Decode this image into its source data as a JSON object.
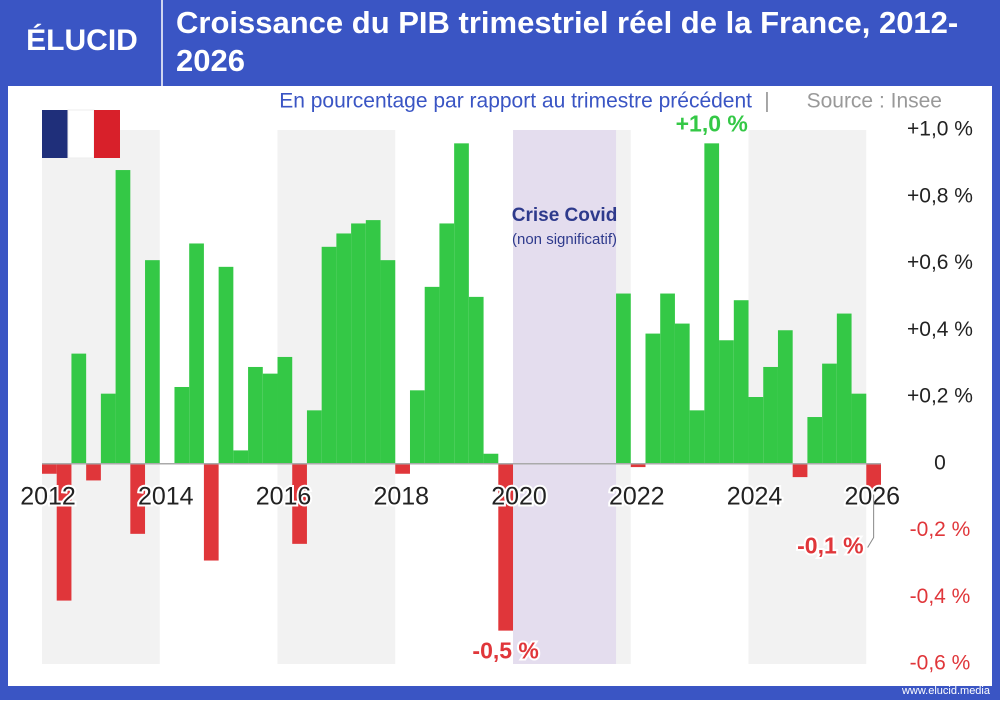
{
  "header": {
    "logo": "ÉLUCID",
    "footer": "www.elucid.media"
  },
  "chart_data": {
    "type": "bar",
    "title": "Croissance du PIB trimestriel réel de la France, 2012-2026",
    "subtitle": "En pourcentage par rapport au trimestre précédent",
    "source": "Source : Insee",
    "x": [
      2012,
      2012.25,
      2012.5,
      2012.75,
      2013,
      2013.25,
      2013.5,
      2013.75,
      2014,
      2014.25,
      2014.5,
      2014.75,
      2015,
      2015.25,
      2015.5,
      2015.75,
      2016,
      2016.25,
      2016.5,
      2016.75,
      2017,
      2017.25,
      2017.5,
      2017.75,
      2018,
      2018.25,
      2018.5,
      2018.75,
      2019,
      2019.25,
      2019.5,
      2019.75,
      2020,
      2020.25,
      2020.5,
      2020.75,
      2021,
      2021.25,
      2021.5,
      2021.75,
      2022,
      2022.25,
      2022.5,
      2022.75,
      2023,
      2023.25,
      2023.5,
      2023.75,
      2024,
      2024.25,
      2024.5,
      2024.75,
      2025,
      2025.25,
      2025.5,
      2025.75,
      2026
    ],
    "values": [
      -0.03,
      -0.41,
      0.33,
      -0.05,
      0.21,
      0.88,
      -0.21,
      0.61,
      0,
      0.23,
      0.66,
      -0.29,
      0.59,
      0.04,
      0.29,
      0.27,
      0.32,
      -0.24,
      0.16,
      0.65,
      0.69,
      0.72,
      0.73,
      0.61,
      -0.03,
      0.22,
      0.53,
      0.72,
      0.96,
      0.5,
      0.03,
      -0.5,
      null,
      null,
      null,
      null,
      null,
      null,
      null,
      0.51,
      -0.01,
      0.39,
      0.51,
      0.42,
      0.16,
      0.96,
      0.37,
      0.49,
      0.2,
      0.29,
      0.4,
      -0.04,
      0.14,
      0.3,
      0.45,
      0.21,
      -0.08
    ],
    "value_labels": [
      null,
      null,
      null,
      null,
      null,
      null,
      null,
      null,
      null,
      null,
      null,
      null,
      null,
      null,
      null,
      null,
      null,
      null,
      null,
      null,
      null,
      null,
      null,
      null,
      null,
      null,
      null,
      null,
      null,
      null,
      null,
      "-0,5 %",
      null,
      null,
      null,
      null,
      null,
      null,
      null,
      null,
      null,
      null,
      null,
      null,
      null,
      "+1,0 %",
      null,
      null,
      null,
      null,
      null,
      null,
      null,
      null,
      null,
      null,
      "-0,1 %"
    ],
    "positive_color": "#34c846",
    "negative_color": "#e0363a",
    "shaded_period": {
      "start": 2020,
      "end": 2021.75,
      "label": "Crise Covid",
      "note": "(non significatif)",
      "color": "#e4ddee"
    },
    "xlim": [
      2012,
      2026.25
    ],
    "xticks": [
      2012,
      2014,
      2016,
      2018,
      2020,
      2022,
      2024,
      2026
    ],
    "ylim": [
      -0.6,
      1.0
    ],
    "yticks": [
      {
        "value": 1.0,
        "label": "+1,0 %"
      },
      {
        "value": 0.8,
        "label": "+0,8 %"
      },
      {
        "value": 0.6,
        "label": "+0,6 %"
      },
      {
        "value": 0.4,
        "label": "+0,4 %"
      },
      {
        "value": 0.2,
        "label": "+0,2 %"
      },
      0,
      {
        "value": -0.2,
        "label": "-0,2 %"
      },
      {
        "value": -0.4,
        "label": "-0,4 %"
      },
      {
        "value": -0.6,
        "label": "-0,6 %"
      }
    ],
    "grid": false
  }
}
